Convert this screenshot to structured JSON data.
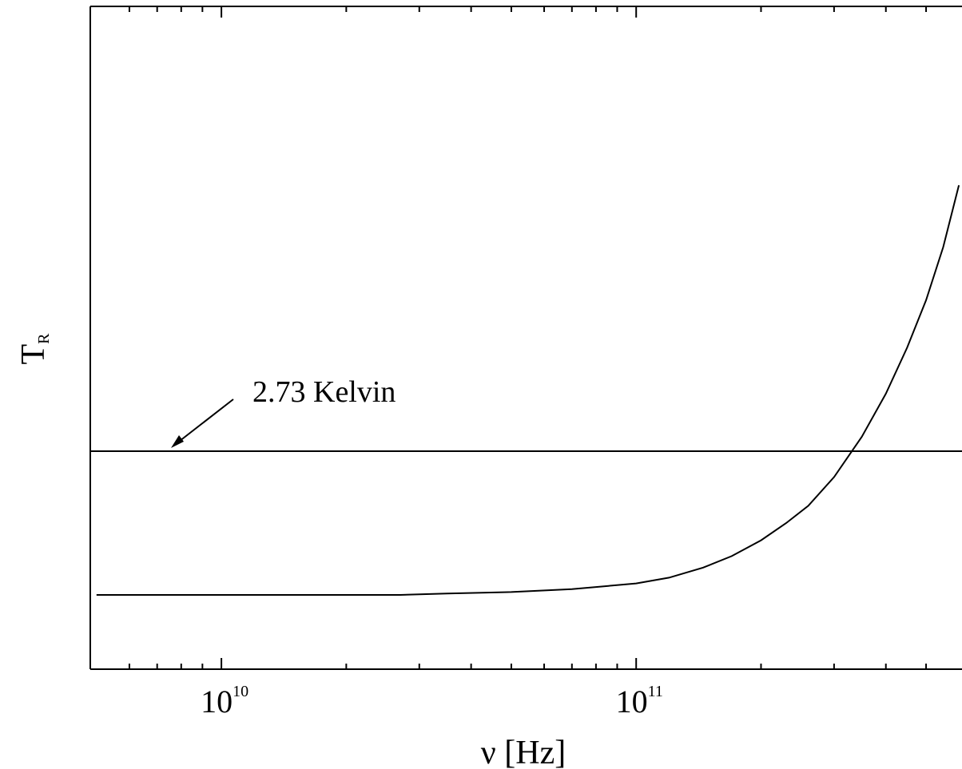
{
  "chart_data": {
    "type": "line",
    "x_scale": "log",
    "xlim": [
      5000000000.0,
      600000000000.0
    ],
    "y_scale": "linear",
    "xlabel": {
      "base": "ν",
      "unit": "[Hz]"
    },
    "ylabel": {
      "base": "T",
      "subscript": "R"
    },
    "x_major_ticks": [
      {
        "value": 10000000000.0,
        "base": "10",
        "exponent": "10"
      },
      {
        "value": 100000000000.0,
        "base": "10",
        "exponent": "11"
      }
    ],
    "x_minor_ticks": [
      6000000000.0,
      7000000000.0,
      8000000000.0,
      9000000000.0,
      20000000000.0,
      30000000000.0,
      40000000000.0,
      50000000000.0,
      60000000000.0,
      70000000000.0,
      80000000000.0,
      90000000000.0,
      200000000000.0,
      300000000000.0,
      400000000000.0,
      500000000000.0
    ],
    "grid": false,
    "legend": "none",
    "reference_line": {
      "label": "2.73 Kelvin"
    },
    "series": [
      {
        "points": [
          [
            5000000000.0,
            0.0
          ],
          [
            6000000000.0,
            0.0
          ],
          [
            8000000000.0,
            0.0
          ],
          [
            10000000000.0,
            0.0
          ],
          [
            15000000000.0,
            0.0
          ],
          [
            20000000000.0,
            0.0
          ],
          [
            27000000000.0,
            0.0
          ],
          [
            35000000000.0,
            0.01
          ],
          [
            50000000000.0,
            0.02
          ],
          [
            70000000000.0,
            0.04
          ],
          [
            100000000000.0,
            0.08
          ],
          [
            120000000000.0,
            0.12
          ],
          [
            145000000000.0,
            0.19
          ],
          [
            170000000000.0,
            0.27
          ],
          [
            200000000000.0,
            0.38
          ],
          [
            230000000000.0,
            0.5
          ],
          [
            260000000000.0,
            0.62
          ],
          [
            300000000000.0,
            0.82
          ],
          [
            350000000000.0,
            1.1
          ],
          [
            400000000000.0,
            1.4
          ],
          [
            450000000000.0,
            1.72
          ],
          [
            500000000000.0,
            2.05
          ],
          [
            550000000000.0,
            2.42
          ],
          [
            600000000000.0,
            2.85
          ]
        ]
      }
    ]
  },
  "colors": {
    "line": "#000000",
    "background": "#ffffff"
  }
}
